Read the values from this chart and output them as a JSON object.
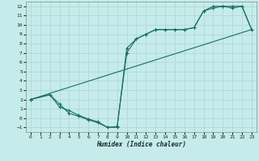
{
  "xlabel": "Humidex (Indice chaleur)",
  "bg_color": "#c5ecea",
  "grid_color": "#b0d8d5",
  "line_color": "#1a6e65",
  "xlim": [
    -0.5,
    23.5
  ],
  "ylim": [
    -1.5,
    12.5
  ],
  "xticks": [
    0,
    1,
    2,
    3,
    4,
    5,
    6,
    7,
    8,
    9,
    10,
    11,
    12,
    13,
    14,
    15,
    16,
    17,
    18,
    19,
    20,
    21,
    22,
    23
  ],
  "yticks": [
    -1,
    0,
    1,
    2,
    3,
    4,
    5,
    6,
    7,
    8,
    9,
    10,
    11,
    12
  ],
  "line1_x": [
    0,
    2,
    3,
    4,
    5,
    6,
    7,
    8,
    9,
    10,
    11,
    12,
    13,
    14,
    15,
    16,
    17,
    18,
    19,
    20,
    21,
    22,
    23
  ],
  "line1_y": [
    2.0,
    2.5,
    1.2,
    0.8,
    0.3,
    -0.1,
    -0.4,
    -1.0,
    -0.9,
    7.0,
    8.5,
    9.0,
    9.5,
    9.5,
    9.5,
    9.5,
    9.7,
    11.5,
    12.0,
    12.0,
    12.0,
    12.0,
    9.5
  ],
  "line2_x": [
    0,
    2,
    3,
    4,
    5,
    6,
    7,
    8,
    9,
    10,
    11,
    12,
    13,
    14,
    15,
    16,
    17,
    18,
    19,
    20,
    21,
    22,
    23
  ],
  "line2_y": [
    2.0,
    2.5,
    1.5,
    0.5,
    0.2,
    -0.2,
    -0.5,
    -1.0,
    -1.0,
    7.5,
    8.5,
    9.0,
    9.5,
    9.5,
    9.5,
    9.5,
    9.7,
    11.5,
    11.8,
    12.0,
    11.8,
    12.0,
    9.5
  ],
  "line3_x": [
    0,
    23
  ],
  "line3_y": [
    2.0,
    9.5
  ]
}
